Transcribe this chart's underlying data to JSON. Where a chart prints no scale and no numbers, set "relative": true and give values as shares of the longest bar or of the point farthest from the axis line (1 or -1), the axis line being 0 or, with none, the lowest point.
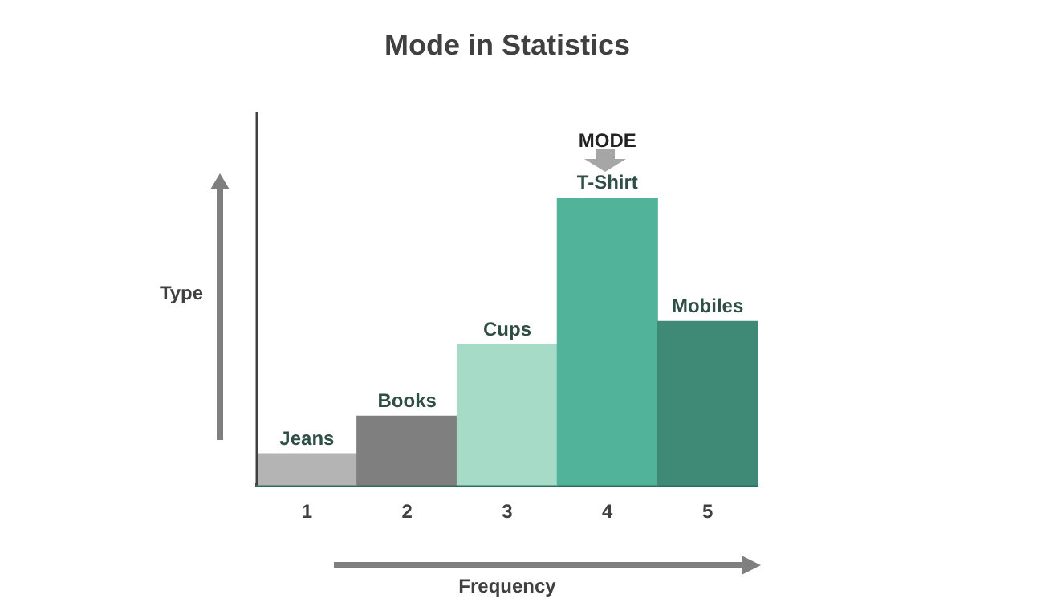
{
  "chart_data": {
    "type": "bar",
    "title": "Mode in Statistics",
    "xlabel": "Frequency",
    "ylabel": "Type",
    "relative": true,
    "categories": [
      "1",
      "2",
      "3",
      "4",
      "5"
    ],
    "values": [
      0.11,
      0.24,
      0.49,
      1,
      0.57
    ],
    "colors": [
      "#b4b4b4",
      "#7f7f7f",
      "#a6dbc7",
      "#52b39b",
      "#3e8a76"
    ],
    "annotations": [
      {
        "text": "Jeans",
        "x": "1",
        "y": 0.11
      },
      {
        "text": "Books",
        "x": "2",
        "y": 0.24
      },
      {
        "text": "Cups",
        "x": "3",
        "y": 0.49
      },
      {
        "text": "T-Shirt",
        "x": "4",
        "y": 1
      },
      {
        "text": "MODE",
        "x": "4",
        "y": 1
      },
      {
        "text": "Mobiles",
        "x": "5",
        "y": 0.57
      }
    ],
    "grid": false,
    "legend": false
  }
}
